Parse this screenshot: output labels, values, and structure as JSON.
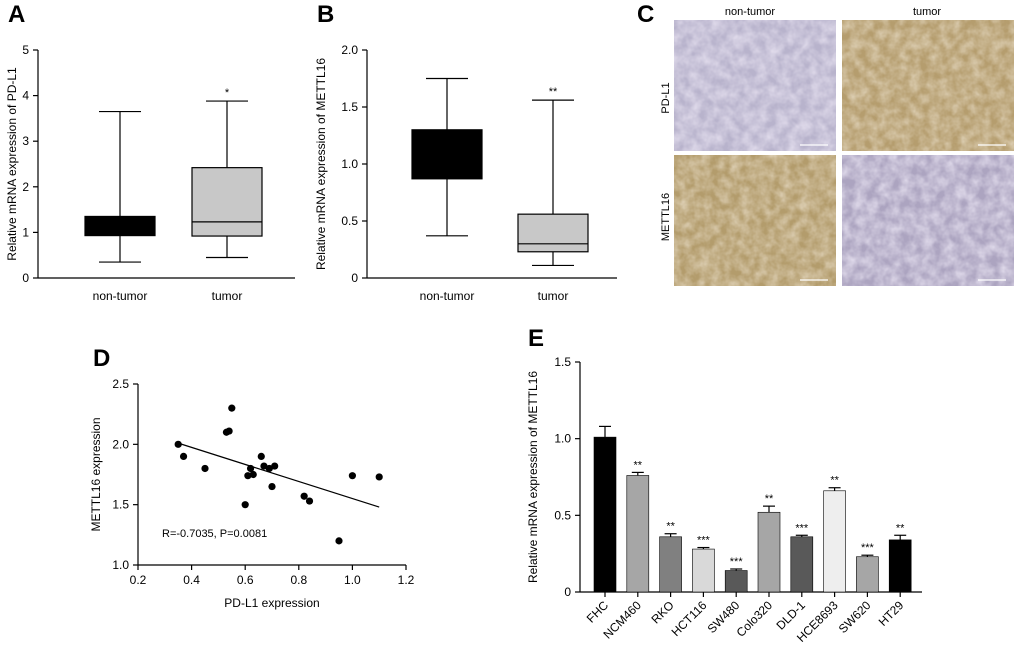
{
  "panel_letters": {
    "a": "A",
    "b": "B",
    "c": "C",
    "d": "D",
    "e": "E"
  },
  "micro": {
    "col_labels": [
      "non-tumor",
      "tumor"
    ],
    "row_labels": [
      "PD-L1",
      "METTL16"
    ]
  },
  "chart_data": [
    {
      "id": "A",
      "type": "box",
      "title": "",
      "xlabel": "",
      "ylabel": "Relative mRNA expression of PD-L1",
      "ylim": [
        0,
        5
      ],
      "yticks": [
        0,
        1,
        2,
        3,
        4,
        5
      ],
      "ytick_labels": [
        "0",
        "1",
        "2",
        "3",
        "4",
        "5"
      ],
      "groups": [
        {
          "name": "non-tumor",
          "min": 0.35,
          "q1": 0.93,
          "median": 1.0,
          "q3": 1.35,
          "max": 3.65,
          "color": "#000000",
          "median_color": "#000000",
          "sig": ""
        },
        {
          "name": "tumor",
          "min": 0.45,
          "q1": 0.92,
          "median": 1.23,
          "q3": 2.42,
          "max": 3.88,
          "color": "#c8c8c8",
          "median_color": "#000000",
          "sig": "*"
        }
      ]
    },
    {
      "id": "B",
      "type": "box",
      "title": "",
      "xlabel": "",
      "ylabel": "Relative mRNA expression of METTL16",
      "ylim": [
        0,
        2.0
      ],
      "yticks": [
        0,
        0.5,
        1.0,
        1.5,
        2.0
      ],
      "ytick_labels": [
        "0",
        "0.5",
        "1.0",
        "1.5",
        "2.0"
      ],
      "groups": [
        {
          "name": "non-tumor",
          "min": 0.37,
          "q1": 0.87,
          "median": 1.1,
          "q3": 1.3,
          "max": 1.75,
          "color": "#000000",
          "median_color": "#000000",
          "sig": ""
        },
        {
          "name": "tumor",
          "min": 0.11,
          "q1": 0.23,
          "median": 0.3,
          "q3": 0.56,
          "max": 1.56,
          "color": "#c8c8c8",
          "median_color": "#000000",
          "sig": "**"
        }
      ]
    },
    {
      "id": "D",
      "type": "scatter",
      "title": "",
      "xlabel": "PD-L1 expression",
      "ylabel": "METTL16 expression",
      "xlim": [
        0.2,
        1.2
      ],
      "ylim": [
        1.0,
        2.5
      ],
      "xticks": [
        0.2,
        0.4,
        0.6,
        0.8,
        1.0,
        1.2
      ],
      "xtick_labels": [
        "0.2",
        "0.4",
        "0.6",
        "0.8",
        "1.0",
        "1.2"
      ],
      "yticks": [
        1.0,
        1.5,
        2.0,
        2.5
      ],
      "ytick_labels": [
        "1.0",
        "1.5",
        "2.0",
        "2.5"
      ],
      "points": [
        {
          "x": 0.35,
          "y": 2.0
        },
        {
          "x": 0.37,
          "y": 1.9
        },
        {
          "x": 0.45,
          "y": 1.8
        },
        {
          "x": 0.53,
          "y": 2.1
        },
        {
          "x": 0.54,
          "y": 2.11
        },
        {
          "x": 0.55,
          "y": 2.3
        },
        {
          "x": 0.6,
          "y": 1.5
        },
        {
          "x": 0.61,
          "y": 1.74
        },
        {
          "x": 0.62,
          "y": 1.8
        },
        {
          "x": 0.63,
          "y": 1.75
        },
        {
          "x": 0.66,
          "y": 1.9
        },
        {
          "x": 0.67,
          "y": 1.82
        },
        {
          "x": 0.69,
          "y": 1.8
        },
        {
          "x": 0.7,
          "y": 1.65
        },
        {
          "x": 0.71,
          "y": 1.82
        },
        {
          "x": 0.82,
          "y": 1.57
        },
        {
          "x": 0.84,
          "y": 1.53
        },
        {
          "x": 0.95,
          "y": 1.2
        },
        {
          "x": 1.0,
          "y": 1.74
        },
        {
          "x": 1.1,
          "y": 1.73
        }
      ],
      "fit_line": [
        {
          "x": 0.35,
          "y": 2.01
        },
        {
          "x": 1.1,
          "y": 1.48
        }
      ],
      "annotation": "R=-0.7035, P=0.0081"
    },
    {
      "id": "E",
      "type": "bar",
      "title": "",
      "xlabel": "",
      "ylabel": "Relative mRNA expression of METTL16",
      "ylim": [
        0,
        1.5
      ],
      "yticks": [
        0,
        0.5,
        1.0,
        1.5
      ],
      "ytick_labels": [
        "0",
        "0.5",
        "1.0",
        "1.5"
      ],
      "categories": [
        "FHC",
        "NCM460",
        "RKO",
        "HCT116",
        "SW480",
        "Colo320",
        "DLD-1",
        "HCE8693",
        "SW620",
        "HT29"
      ],
      "values": [
        1.01,
        0.76,
        0.36,
        0.28,
        0.14,
        0.52,
        0.36,
        0.66,
        0.23,
        0.34
      ],
      "errors": [
        0.07,
        0.02,
        0.02,
        0.01,
        0.01,
        0.04,
        0.01,
        0.02,
        0.01,
        0.03
      ],
      "colors": [
        "#000000",
        "#a6a6a6",
        "#808080",
        "#d9d9d9",
        "#595959",
        "#a6a6a6",
        "#595959",
        "#eeeeee",
        "#a6a6a6",
        "#000000"
      ],
      "sig": [
        "",
        "**",
        "**",
        "***",
        "***",
        "**",
        "***",
        "**",
        "***",
        "**"
      ]
    }
  ]
}
